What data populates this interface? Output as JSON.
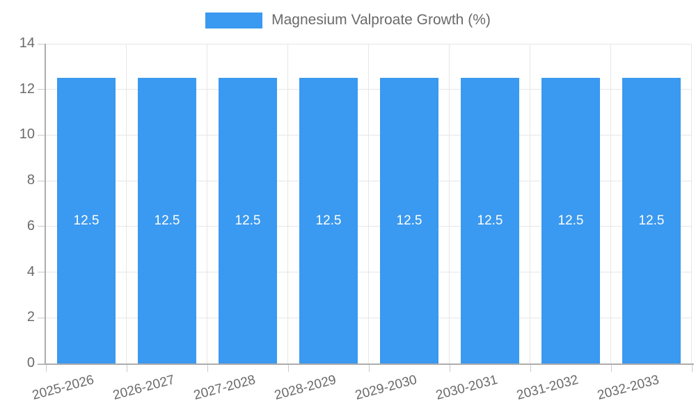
{
  "chart_data": {
    "type": "bar",
    "title": "Magnesium Valproate Growth (%)",
    "legend_position": "top",
    "grid": true,
    "categories": [
      "2025-2026",
      "2026-2027",
      "2027-2028",
      "2028-2029",
      "2029-2030",
      "2030-2031",
      "2031-2032",
      "2032-2033"
    ],
    "series": [
      {
        "name": "Magnesium Valproate Growth (%)",
        "values": [
          12.5,
          12.5,
          12.5,
          12.5,
          12.5,
          12.5,
          12.5,
          12.5
        ]
      }
    ],
    "bar_value_labels": [
      "12.5",
      "12.5",
      "12.5",
      "12.5",
      "12.5",
      "12.5",
      "12.5",
      "12.5"
    ],
    "xlabel": "",
    "ylabel": "",
    "ylim": [
      0,
      14
    ],
    "yticks": [
      0,
      2,
      4,
      6,
      8,
      10,
      12,
      14
    ],
    "x_tick_rotation_deg": -15,
    "colors": {
      "bar": "#3A99F0",
      "grid": "#E6E6E6",
      "axis": "#ACACAC",
      "tickmark": "#C9C9C9",
      "text": "#6A6A6A",
      "value_label": "#FFFFFF"
    }
  }
}
